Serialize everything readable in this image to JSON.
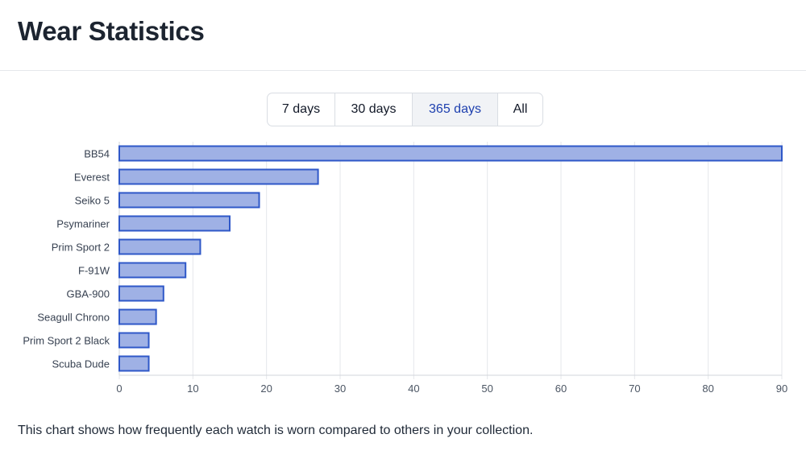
{
  "header": {
    "title": "Wear Statistics"
  },
  "range_selector": {
    "options": [
      "7 days",
      "30 days",
      "365 days",
      "All"
    ],
    "selected": "365 days"
  },
  "colors": {
    "bar_fill": "#9fb1e5",
    "bar_stroke": "#2f58c8",
    "selected_text": "#1e40af"
  },
  "chart_data": {
    "type": "bar",
    "orientation": "horizontal",
    "categories": [
      "BB54",
      "Everest",
      "Seiko 5",
      "Psymariner",
      "Prim Sport 2",
      "F-91W",
      "GBA-900",
      "Seagull Chrono",
      "Prim Sport 2 Black",
      "Scuba Dude"
    ],
    "values": [
      90,
      27,
      19,
      15,
      11,
      9,
      6,
      5,
      4,
      4
    ],
    "xlim": [
      0,
      90
    ],
    "xticks": [
      "0",
      "10",
      "20",
      "30",
      "40",
      "50",
      "60",
      "70",
      "80",
      "90"
    ],
    "grid": true,
    "legend": "none"
  },
  "footer": {
    "description": "This chart shows how frequently each watch is worn compared to others in your collection."
  }
}
